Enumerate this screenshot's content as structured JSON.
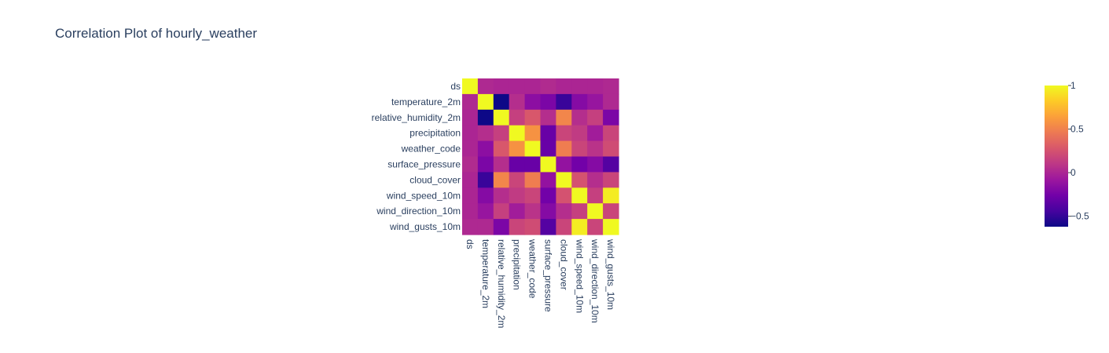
{
  "chart_data": {
    "type": "heatmap",
    "title": "Correlation Plot of hourly_weather",
    "variables": [
      "ds",
      "temperature_2m",
      "relative_humidity_2m",
      "precipitation",
      "weather_code",
      "surface_pressure",
      "cloud_cover",
      "wind_speed_10m",
      "wind_direction_10m",
      "wind_gusts_10m"
    ],
    "z": [
      [
        1.0,
        0.02,
        0.0,
        0.0,
        0.0,
        0.03,
        0.0,
        0.0,
        0.0,
        0.02
      ],
      [
        0.02,
        1.0,
        -0.62,
        0.05,
        -0.15,
        -0.22,
        -0.48,
        -0.18,
        -0.1,
        0.02
      ],
      [
        0.0,
        -0.62,
        1.0,
        0.15,
        0.28,
        0.05,
        0.52,
        0.05,
        0.15,
        -0.22
      ],
      [
        0.0,
        0.05,
        0.15,
        1.0,
        0.58,
        -0.3,
        0.18,
        0.12,
        -0.05,
        0.18
      ],
      [
        0.0,
        -0.15,
        0.28,
        0.58,
        1.0,
        -0.3,
        0.48,
        0.18,
        0.08,
        0.22
      ],
      [
        0.03,
        -0.22,
        0.05,
        -0.3,
        -0.3,
        1.0,
        -0.12,
        -0.26,
        -0.18,
        -0.38
      ],
      [
        0.0,
        -0.48,
        0.52,
        0.18,
        0.48,
        -0.12,
        1.0,
        0.25,
        0.05,
        0.18
      ],
      [
        0.0,
        -0.18,
        0.05,
        0.12,
        0.18,
        -0.26,
        0.25,
        1.0,
        0.15,
        0.95
      ],
      [
        0.0,
        -0.1,
        0.15,
        -0.05,
        0.08,
        -0.18,
        0.05,
        0.15,
        1.0,
        0.18
      ],
      [
        0.02,
        0.02,
        -0.22,
        0.18,
        0.22,
        -0.38,
        0.18,
        0.95,
        0.18,
        1.0
      ]
    ],
    "colorscale": [
      "#0d0887",
      "#46039f",
      "#7201a8",
      "#9c179e",
      "#bd3786",
      "#d8576b",
      "#ed7953",
      "#fb9f3a",
      "#fdca26",
      "#f0f921"
    ],
    "zmin": -0.62,
    "zmax": 1.0,
    "colorbar_ticks": [
      {
        "value": 1,
        "label": "1"
      },
      {
        "value": 0.5,
        "label": "0.5"
      },
      {
        "value": 0,
        "label": "0"
      },
      {
        "value": -0.5,
        "label": "−0.5"
      }
    ],
    "legend": "colorbar, right"
  }
}
